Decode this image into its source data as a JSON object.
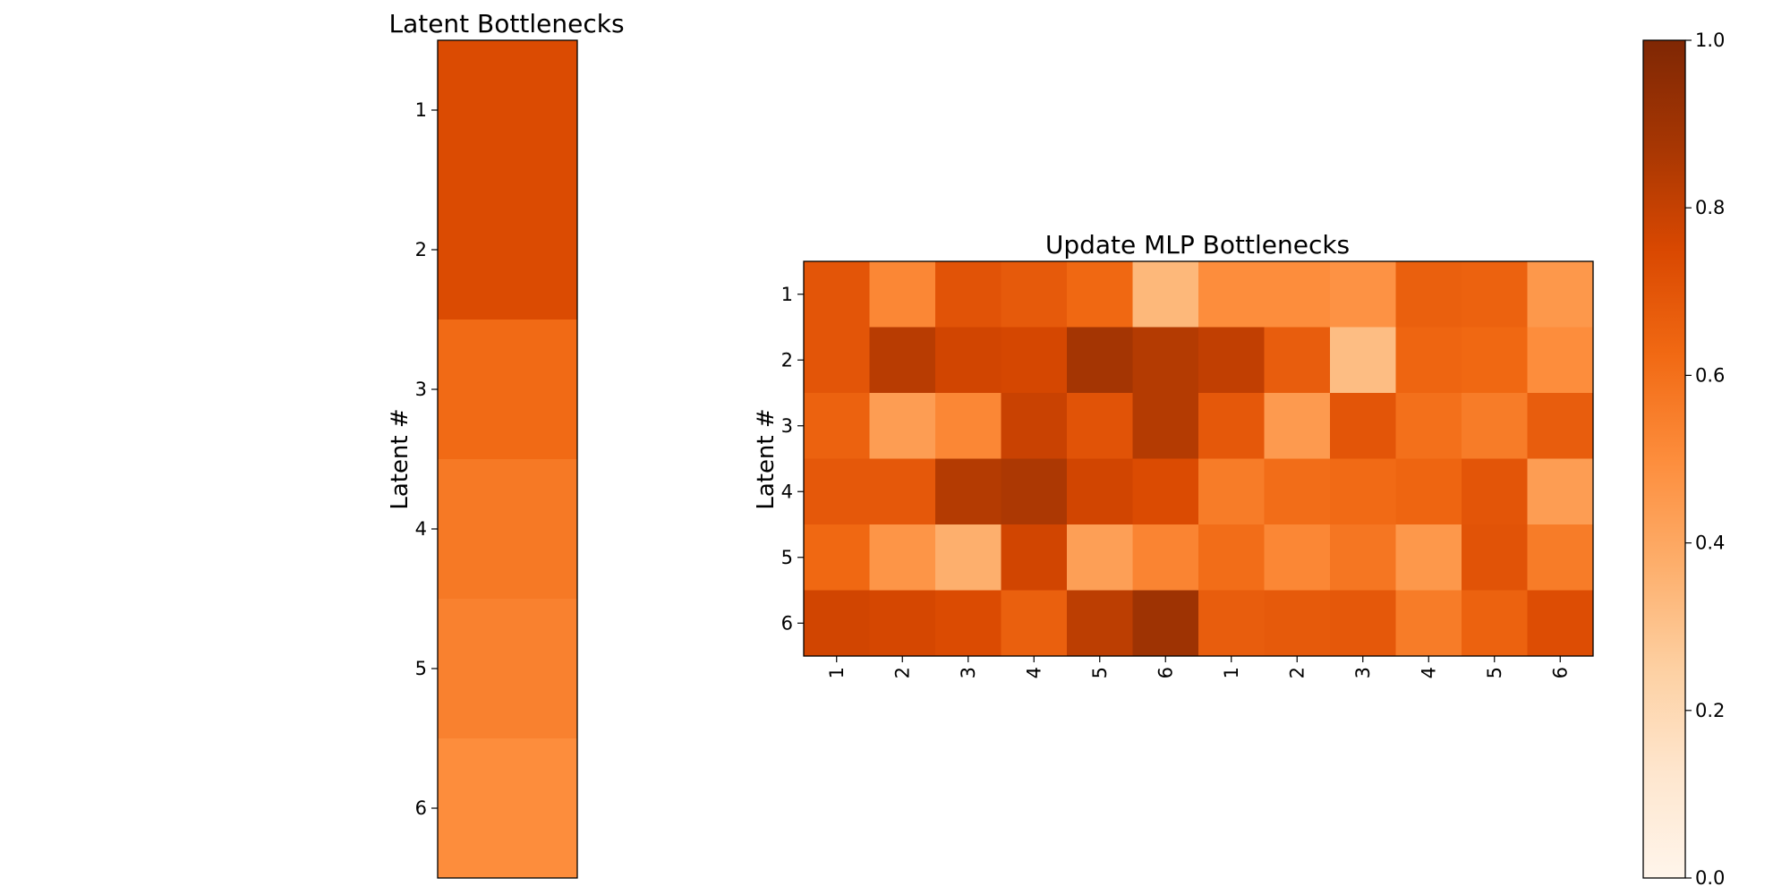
{
  "chart_data": [
    {
      "type": "heatmap",
      "title": "Latent Bottlenecks",
      "ylabel": "Latent #",
      "xlabel": "",
      "y_ticks": [
        "1",
        "2",
        "3",
        "4",
        "5",
        "6"
      ],
      "x_ticks": [],
      "values": [
        [
          0.74
        ],
        [
          0.74
        ],
        [
          0.62
        ],
        [
          0.57
        ],
        [
          0.54
        ],
        [
          0.5
        ]
      ],
      "colormap": "Oranges",
      "vmin": 0.0,
      "vmax": 1.0
    },
    {
      "type": "heatmap",
      "title": "Update MLP Bottlenecks",
      "ylabel": "Latent #",
      "xlabel": "",
      "y_ticks": [
        "1",
        "2",
        "3",
        "4",
        "5",
        "6"
      ],
      "x_ticks": [
        "1",
        "2",
        "3",
        "4",
        "5",
        "6",
        "1",
        "2",
        "3",
        "4",
        "5",
        "6"
      ],
      "values": [
        [
          0.7,
          0.52,
          0.71,
          0.68,
          0.63,
          0.34,
          0.5,
          0.5,
          0.48,
          0.66,
          0.65,
          0.46
        ],
        [
          0.7,
          0.83,
          0.77,
          0.76,
          0.88,
          0.84,
          0.81,
          0.67,
          0.32,
          0.64,
          0.63,
          0.5
        ],
        [
          0.65,
          0.44,
          0.52,
          0.79,
          0.71,
          0.84,
          0.69,
          0.45,
          0.7,
          0.6,
          0.56,
          0.67
        ],
        [
          0.69,
          0.69,
          0.84,
          0.86,
          0.77,
          0.74,
          0.56,
          0.61,
          0.62,
          0.64,
          0.7,
          0.44
        ],
        [
          0.63,
          0.47,
          0.37,
          0.77,
          0.43,
          0.53,
          0.61,
          0.52,
          0.58,
          0.46,
          0.71,
          0.56
        ],
        [
          0.77,
          0.76,
          0.74,
          0.66,
          0.82,
          0.9,
          0.67,
          0.68,
          0.69,
          0.56,
          0.65,
          0.73
        ]
      ],
      "colormap": "Oranges",
      "vmin": 0.0,
      "vmax": 1.0
    },
    {
      "type": "colorbar",
      "colormap": "Oranges",
      "range": [
        0.0,
        1.0
      ],
      "ticks": [
        "0.0",
        "0.2",
        "0.4",
        "0.6",
        "0.8",
        "1.0"
      ]
    }
  ]
}
